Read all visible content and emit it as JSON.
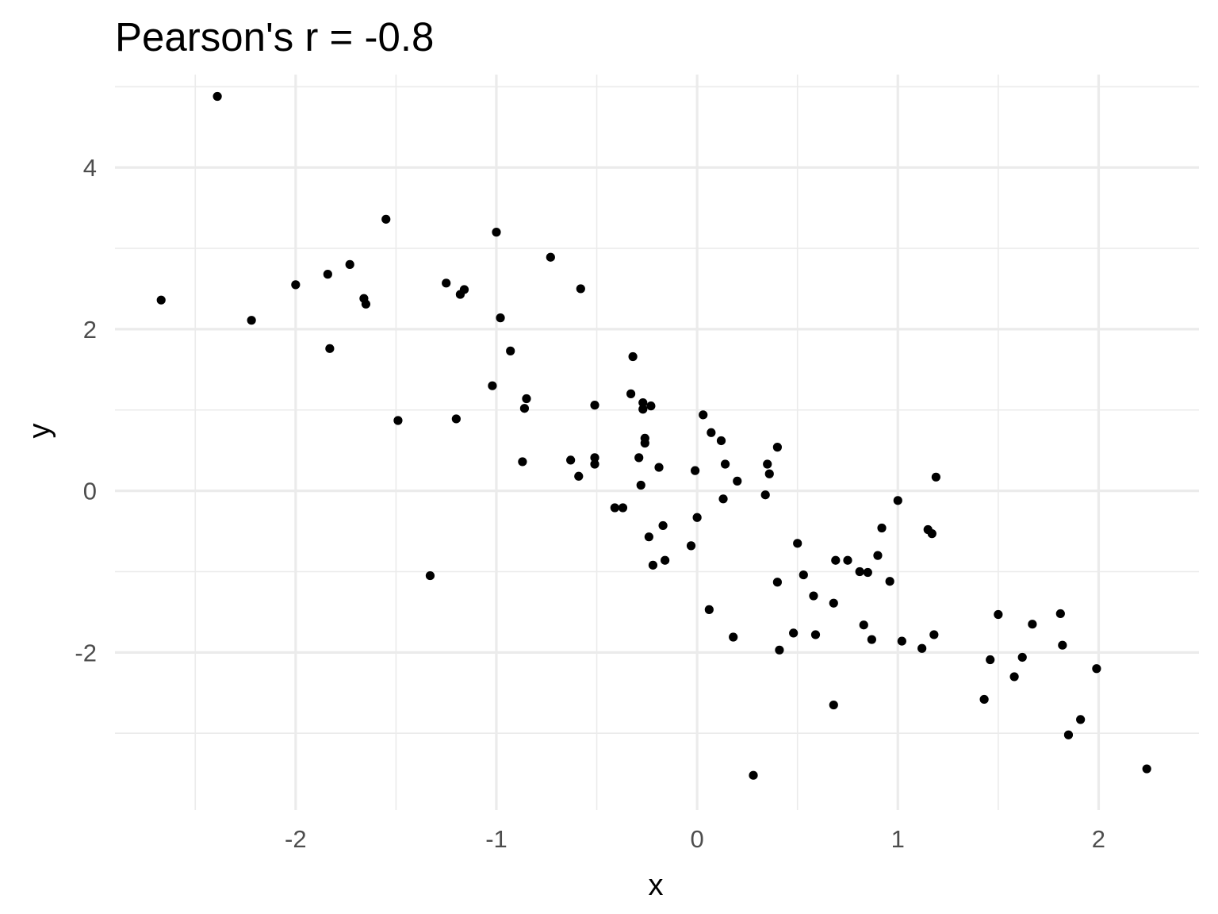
{
  "chart_data": {
    "type": "scatter",
    "title": "Pearson's r = -0.8",
    "xlabel": "x",
    "ylabel": "y",
    "xlim": [
      -2.9,
      2.5
    ],
    "ylim": [
      -3.95,
      5.15
    ],
    "x_ticks": [
      -2,
      -1,
      0,
      1,
      2
    ],
    "x_tick_labels": [
      "-2",
      "-1",
      "0",
      "1",
      "2"
    ],
    "y_ticks": [
      -2,
      0,
      2,
      4
    ],
    "y_tick_labels": [
      "-2",
      "0",
      "2",
      "4"
    ],
    "x_minor_ticks": [
      -2.5,
      -1.5,
      -0.5,
      0.5,
      1.5
    ],
    "y_minor_ticks": [
      -3,
      -1,
      1,
      3,
      5
    ],
    "grid": true,
    "series": [
      {
        "color": "#000000",
        "points": [
          [
            -2.67,
            2.36
          ],
          [
            -2.39,
            4.88
          ],
          [
            -2.22,
            2.11
          ],
          [
            -2.0,
            2.55
          ],
          [
            -1.84,
            2.68
          ],
          [
            -1.83,
            1.76
          ],
          [
            -1.73,
            2.8
          ],
          [
            -1.66,
            2.38
          ],
          [
            -1.65,
            2.31
          ],
          [
            -1.55,
            3.36
          ],
          [
            -1.49,
            0.87
          ],
          [
            -1.33,
            -1.05
          ],
          [
            -1.25,
            2.57
          ],
          [
            -1.2,
            0.89
          ],
          [
            -1.18,
            2.43
          ],
          [
            -1.16,
            2.49
          ],
          [
            -1.02,
            1.3
          ],
          [
            -1.0,
            3.2
          ],
          [
            -0.98,
            2.14
          ],
          [
            -0.93,
            1.73
          ],
          [
            -0.87,
            0.36
          ],
          [
            -0.86,
            1.02
          ],
          [
            -0.85,
            1.14
          ],
          [
            -0.73,
            2.89
          ],
          [
            -0.63,
            0.38
          ],
          [
            -0.59,
            0.18
          ],
          [
            -0.58,
            2.5
          ],
          [
            -0.51,
            1.06
          ],
          [
            -0.51,
            0.41
          ],
          [
            -0.51,
            0.33
          ],
          [
            -0.41,
            -0.21
          ],
          [
            -0.37,
            -0.21
          ],
          [
            -0.33,
            1.2
          ],
          [
            -0.32,
            1.66
          ],
          [
            -0.29,
            0.41
          ],
          [
            -0.28,
            0.07
          ],
          [
            -0.27,
            1.01
          ],
          [
            -0.27,
            1.09
          ],
          [
            -0.26,
            0.65
          ],
          [
            -0.26,
            0.59
          ],
          [
            -0.24,
            -0.57
          ],
          [
            -0.23,
            1.05
          ],
          [
            -0.22,
            -0.92
          ],
          [
            -0.19,
            0.29
          ],
          [
            -0.17,
            -0.43
          ],
          [
            -0.16,
            -0.86
          ],
          [
            -0.03,
            -0.68
          ],
          [
            -0.01,
            0.25
          ],
          [
            -0.0,
            -0.33
          ],
          [
            0.03,
            0.94
          ],
          [
            0.06,
            -1.47
          ],
          [
            0.07,
            0.72
          ],
          [
            0.12,
            0.62
          ],
          [
            0.13,
            -0.1
          ],
          [
            0.14,
            0.33
          ],
          [
            0.18,
            -1.81
          ],
          [
            0.2,
            0.12
          ],
          [
            0.28,
            -3.52
          ],
          [
            0.34,
            -0.05
          ],
          [
            0.35,
            0.33
          ],
          [
            0.36,
            0.21
          ],
          [
            0.4,
            0.54
          ],
          [
            0.4,
            -1.13
          ],
          [
            0.41,
            -1.97
          ],
          [
            0.48,
            -1.76
          ],
          [
            0.5,
            -0.65
          ],
          [
            0.53,
            -1.04
          ],
          [
            0.58,
            -1.3
          ],
          [
            0.59,
            -1.78
          ],
          [
            0.68,
            -1.39
          ],
          [
            0.68,
            -2.65
          ],
          [
            0.69,
            -0.86
          ],
          [
            0.75,
            -0.86
          ],
          [
            0.81,
            -1.0
          ],
          [
            0.83,
            -1.66
          ],
          [
            0.85,
            -1.01
          ],
          [
            0.87,
            -1.84
          ],
          [
            0.9,
            -0.8
          ],
          [
            0.92,
            -0.46
          ],
          [
            0.96,
            -1.12
          ],
          [
            1.0,
            -0.12
          ],
          [
            1.02,
            -1.86
          ],
          [
            1.12,
            -1.95
          ],
          [
            1.15,
            -0.48
          ],
          [
            1.17,
            -0.53
          ],
          [
            1.18,
            -1.78
          ],
          [
            1.19,
            0.17
          ],
          [
            1.43,
            -2.58
          ],
          [
            1.46,
            -2.09
          ],
          [
            1.5,
            -1.53
          ],
          [
            1.58,
            -2.3
          ],
          [
            1.62,
            -2.06
          ],
          [
            1.67,
            -1.65
          ],
          [
            1.81,
            -1.52
          ],
          [
            1.82,
            -1.91
          ],
          [
            1.85,
            -3.02
          ],
          [
            1.91,
            -2.83
          ],
          [
            1.99,
            -2.2
          ],
          [
            2.24,
            -3.44
          ]
        ]
      }
    ]
  }
}
